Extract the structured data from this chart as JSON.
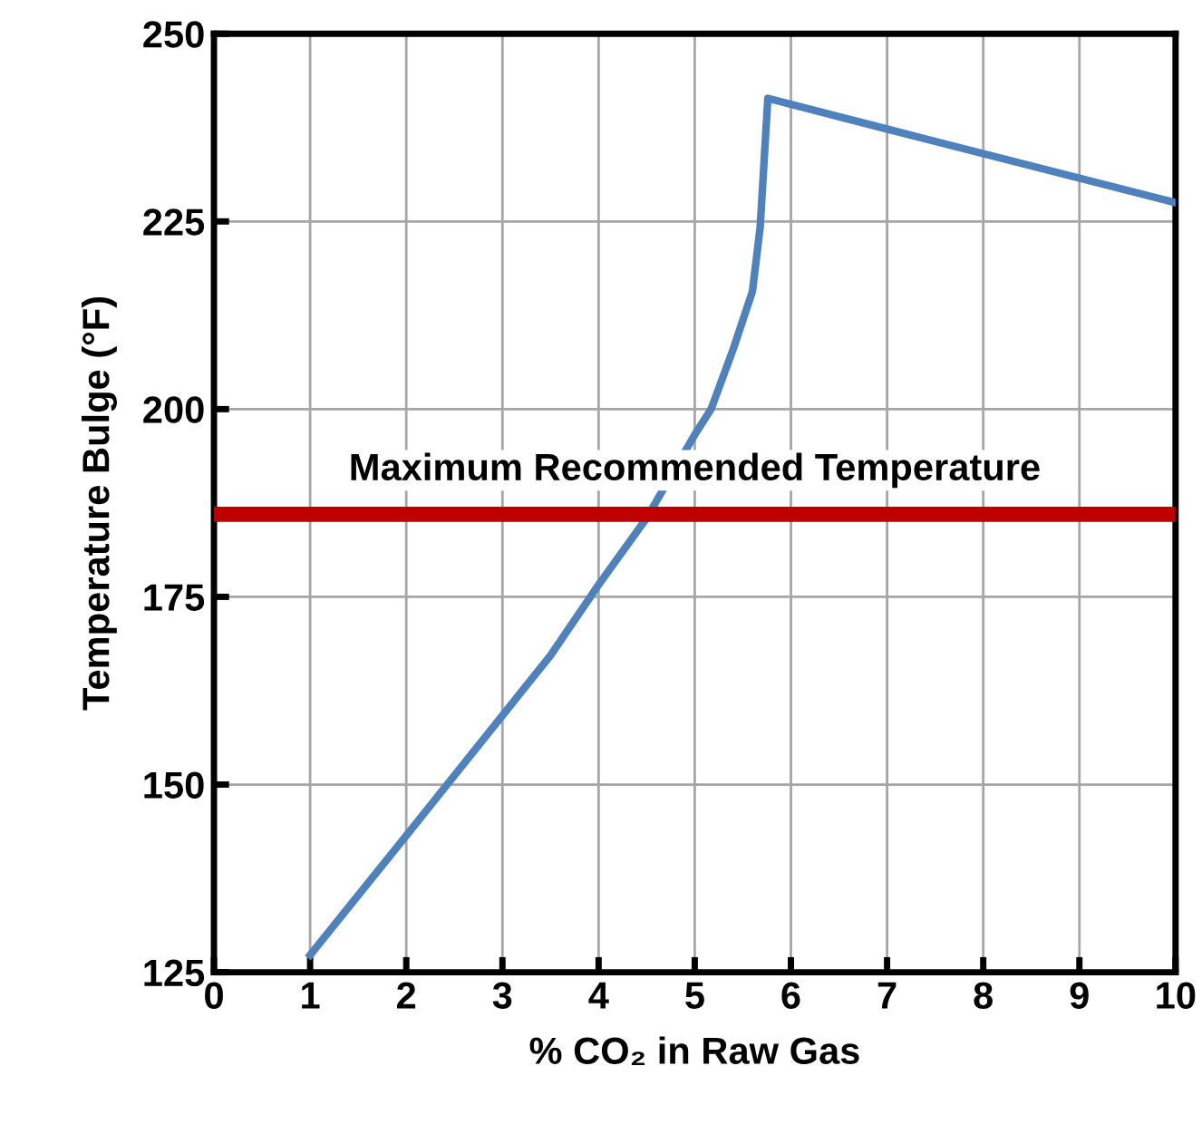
{
  "chart_data": {
    "type": "line",
    "xlabel": "% CO₂ in Raw Gas",
    "ylabel": "Temperature Bulge (°F)",
    "x": [
      1,
      2,
      3,
      3.5,
      4,
      4.5,
      5,
      5.17,
      5.4,
      5.6,
      5.68,
      5.76,
      7,
      10
    ],
    "series": [
      {
        "color": "#4f81bd",
        "values": [
          127.3,
          143.2,
          159.2,
          167.2,
          176.6,
          185.5,
          196.6,
          200,
          208,
          215.7,
          224.2,
          241.4,
          237.3,
          227.5
        ]
      }
    ],
    "xlim": [
      0,
      10
    ],
    "xticks": [
      0,
      1,
      2,
      3,
      4,
      5,
      6,
      7,
      8,
      9,
      10
    ],
    "ylim": [
      125,
      250
    ],
    "yticks": [
      125,
      150,
      175,
      200,
      225,
      250
    ],
    "grid": true,
    "marker": "none",
    "line_style": "solid",
    "ref_lines": [
      {
        "axis": "y",
        "value": 186,
        "label": "Maximum Recommended Temperature",
        "color": "#c00000"
      }
    ]
  }
}
